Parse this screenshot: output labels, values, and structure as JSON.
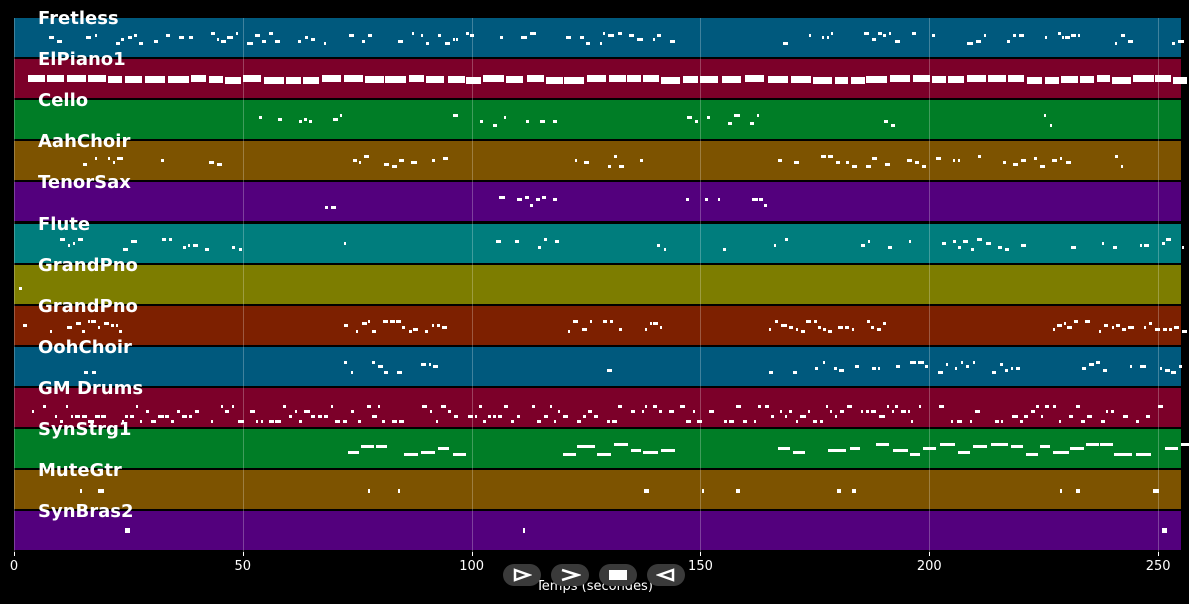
{
  "tracks": [
    {
      "name": "Fretless",
      "color": "#00597d"
    },
    {
      "name": "ElPiano1",
      "color": "#7c0029"
    },
    {
      "name": "Cello",
      "color": "#007d26"
    },
    {
      "name": "AahChoir",
      "color": "#7d5300"
    },
    {
      "name": "TenorSax",
      "color": "#53007d"
    },
    {
      "name": "Flute",
      "color": "#007d7d"
    },
    {
      "name": "GrandPno",
      "color": "#7d7d00"
    },
    {
      "name": "GrandPno",
      "color": "#7d2000"
    },
    {
      "name": "OohChoir",
      "color": "#00597d"
    },
    {
      "name": "GM Drums",
      "color": "#7c0029"
    },
    {
      "name": "SynStrg1",
      "color": "#007d26"
    },
    {
      "name": "MuteGtr",
      "color": "#7d5300"
    },
    {
      "name": "SynBras2",
      "color": "#53007d"
    }
  ],
  "axis": {
    "xlabel": "Temps (secondes)",
    "xmin": 0,
    "xmax": 255,
    "ticks": [
      {
        "value": 0,
        "label": "0"
      },
      {
        "value": 50,
        "label": "50"
      },
      {
        "value": 100,
        "label": "100"
      },
      {
        "value": 150,
        "label": "150"
      },
      {
        "value": 200,
        "label": "200"
      },
      {
        "value": 250,
        "label": "250"
      }
    ]
  },
  "transport": {
    "buttons": [
      {
        "name": "play-outline-icon"
      },
      {
        "name": "play-icon"
      },
      {
        "name": "stop-icon"
      },
      {
        "name": "rewind-icon"
      }
    ]
  },
  "colors": {
    "background": "#000000",
    "note": "#ffffff"
  }
}
